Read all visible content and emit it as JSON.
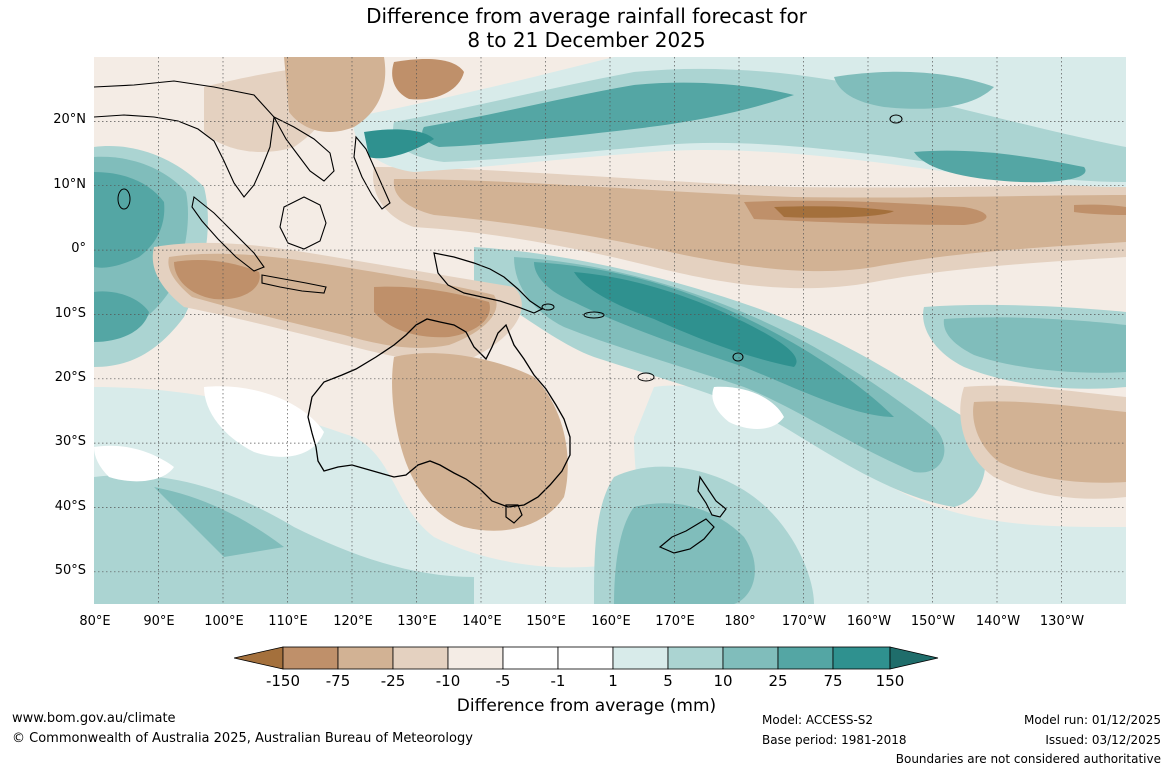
{
  "title": {
    "line1": "Difference from average rainfall forecast for",
    "line2": "8 to 21 December 2025"
  },
  "map": {
    "projection": "equirectangular",
    "lon_range": [
      80,
      240
    ],
    "lat_range": [
      -55,
      30
    ],
    "grid": true,
    "lat_ticks": [
      "20°N",
      "10°N",
      "0°",
      "10°S",
      "20°S",
      "30°S",
      "40°S",
      "50°S"
    ],
    "lat_values": [
      20,
      10,
      0,
      -10,
      -20,
      -30,
      -40,
      -50
    ],
    "lon_ticks": [
      "80°E",
      "90°E",
      "100°E",
      "110°E",
      "120°E",
      "130°E",
      "140°E",
      "150°E",
      "160°E",
      "170°E",
      "180°",
      "170°W",
      "160°W",
      "150°W",
      "140°W",
      "130°W"
    ],
    "lon_values": [
      80,
      90,
      100,
      110,
      120,
      130,
      140,
      150,
      160,
      170,
      180,
      190,
      200,
      210,
      220,
      230
    ]
  },
  "colorbar": {
    "ticks": [
      "-150",
      "-75",
      "-25",
      "-10",
      "-5",
      "-1",
      "1",
      "5",
      "10",
      "25",
      "75",
      "150"
    ],
    "colors": [
      "#a4703c",
      "#bf906a",
      "#d2b294",
      "#e4d1c0",
      "#f4ece5",
      "#ffffff",
      "#d8ebea",
      "#abd4d2",
      "#80bdbb",
      "#54a6a4",
      "#2f918f",
      "#1f6d6b"
    ],
    "title": "Difference from average (mm)",
    "extend": "both"
  },
  "footer": {
    "website": "www.bom.gov.au/climate",
    "copyright": "© Commonwealth of Australia 2025, Australian Bureau of Meteorology",
    "model": "Model: ACCESS-S2",
    "base_period": "Base period: 1981-2018",
    "model_run": "Model run: 01/12/2025",
    "issued": "Issued: 03/12/2025",
    "disclaimer": "Boundaries are not considered authoritative"
  }
}
